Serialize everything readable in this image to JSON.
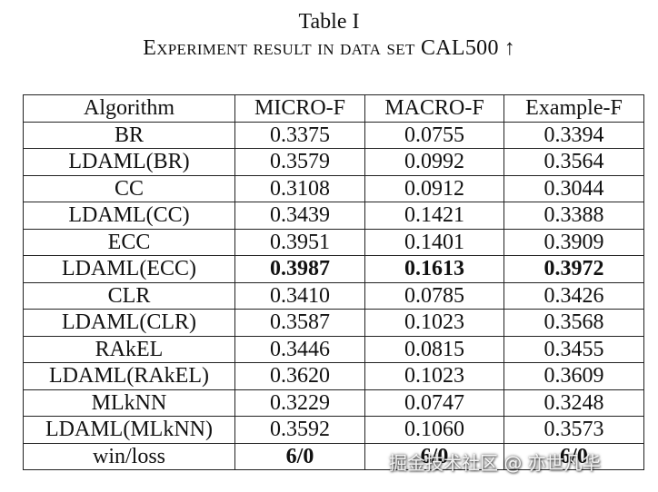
{
  "caption": {
    "title": "Table I",
    "subtitle": "Experiment result in data set CAL500",
    "arrow": "↑"
  },
  "table": {
    "headers": [
      "Algorithm",
      "MICRO-F",
      "MACRO-F",
      "Example-F"
    ],
    "rows": [
      {
        "cells": [
          "BR",
          "0.3375",
          "0.0755",
          "0.3394"
        ],
        "bold": [
          false,
          false,
          false,
          false
        ]
      },
      {
        "cells": [
          "LDAML(BR)",
          "0.3579",
          "0.0992",
          "0.3564"
        ],
        "bold": [
          false,
          false,
          false,
          false
        ]
      },
      {
        "cells": [
          "CC",
          "0.3108",
          "0.0912",
          "0.3044"
        ],
        "bold": [
          false,
          false,
          false,
          false
        ]
      },
      {
        "cells": [
          "LDAML(CC)",
          "0.3439",
          "0.1421",
          "0.3388"
        ],
        "bold": [
          false,
          false,
          false,
          false
        ]
      },
      {
        "cells": [
          "ECC",
          "0.3951",
          "0.1401",
          "0.3909"
        ],
        "bold": [
          false,
          false,
          false,
          false
        ]
      },
      {
        "cells": [
          "LDAML(ECC)",
          "0.3987",
          "0.1613",
          "0.3972"
        ],
        "bold": [
          false,
          true,
          true,
          true
        ]
      },
      {
        "cells": [
          "CLR",
          "0.3410",
          "0.0785",
          "0.3426"
        ],
        "bold": [
          false,
          false,
          false,
          false
        ]
      },
      {
        "cells": [
          "LDAML(CLR)",
          "0.3587",
          "0.1023",
          "0.3568"
        ],
        "bold": [
          false,
          false,
          false,
          false
        ]
      },
      {
        "cells": [
          "RAkEL",
          "0.3446",
          "0.0815",
          "0.3455"
        ],
        "bold": [
          false,
          false,
          false,
          false
        ]
      },
      {
        "cells": [
          "LDAML(RAkEL)",
          "0.3620",
          "0.1023",
          "0.3609"
        ],
        "bold": [
          false,
          false,
          false,
          false
        ]
      },
      {
        "cells": [
          "MLkNN",
          "0.3229",
          "0.0747",
          "0.3248"
        ],
        "bold": [
          false,
          false,
          false,
          false
        ]
      },
      {
        "cells": [
          "LDAML(MLkNN)",
          "0.3592",
          "0.1060",
          "0.3573"
        ],
        "bold": [
          false,
          false,
          false,
          false
        ]
      },
      {
        "cells": [
          "win/loss",
          "6/0",
          "6/0",
          "6/0"
        ],
        "bold": [
          false,
          true,
          true,
          true
        ]
      }
    ]
  },
  "watermark": {
    "text": "掘金技术社区 @ 亦世凡华"
  }
}
